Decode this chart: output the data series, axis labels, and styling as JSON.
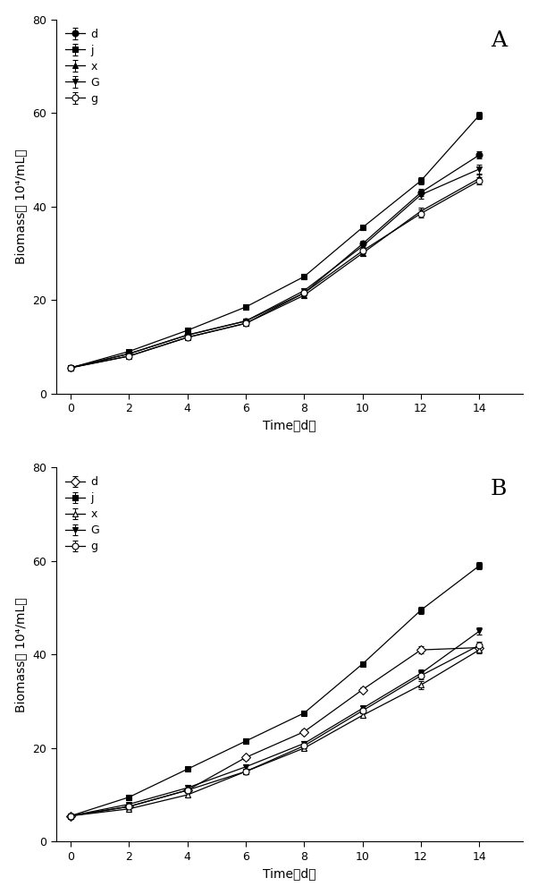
{
  "x": [
    0,
    2,
    4,
    6,
    8,
    10,
    12,
    14
  ],
  "panelA": {
    "label": "A",
    "series": {
      "d": {
        "y": [
          5.5,
          8.5,
          12.5,
          15.5,
          21.5,
          32.0,
          43.0,
          51.0
        ],
        "yerr": [
          0.3,
          0.3,
          0.4,
          0.5,
          0.5,
          0.6,
          0.8,
          0.8
        ],
        "marker": "o",
        "mfc": "black",
        "mec": "black",
        "markersize": 5,
        "legend_label": "d"
      },
      "j": {
        "y": [
          5.5,
          9.0,
          13.5,
          18.5,
          25.0,
          35.5,
          45.5,
          59.5
        ],
        "yerr": [
          0.3,
          0.3,
          0.4,
          0.5,
          0.5,
          0.5,
          0.8,
          0.8
        ],
        "marker": "s",
        "mfc": "black",
        "mec": "black",
        "markersize": 5,
        "legend_label": "j"
      },
      "x": {
        "y": [
          5.5,
          8.0,
          12.0,
          15.0,
          21.0,
          30.0,
          39.0,
          46.0
        ],
        "yerr": [
          0.3,
          0.3,
          0.4,
          0.5,
          0.5,
          0.5,
          0.8,
          0.8
        ],
        "marker": "^",
        "mfc": "black",
        "mec": "black",
        "markersize": 5,
        "legend_label": "x"
      },
      "G": {
        "y": [
          5.5,
          8.5,
          12.5,
          15.5,
          22.0,
          31.5,
          42.5,
          48.0
        ],
        "yerr": [
          0.3,
          0.3,
          0.4,
          0.5,
          0.5,
          0.6,
          0.8,
          1.0
        ],
        "marker": "v",
        "mfc": "black",
        "mec": "black",
        "markersize": 5,
        "legend_label": "G"
      },
      "g": {
        "y": [
          5.5,
          8.0,
          12.0,
          15.0,
          21.5,
          30.5,
          38.5,
          45.5
        ],
        "yerr": [
          0.3,
          0.3,
          0.4,
          0.5,
          0.5,
          0.5,
          0.8,
          0.8
        ],
        "marker": "o",
        "mfc": "white",
        "mec": "black",
        "markersize": 5,
        "legend_label": "g"
      }
    },
    "series_order": [
      "d",
      "j",
      "x",
      "G",
      "g"
    ]
  },
  "panelB": {
    "label": "B",
    "series": {
      "d": {
        "y": [
          5.5,
          7.5,
          11.0,
          18.0,
          23.5,
          32.5,
          41.0,
          41.5
        ],
        "yerr": [
          0.3,
          0.3,
          0.4,
          0.5,
          0.5,
          0.5,
          0.8,
          0.8
        ],
        "marker": "D",
        "mfc": "white",
        "mec": "black",
        "markersize": 5,
        "legend_label": "d"
      },
      "j": {
        "y": [
          5.5,
          9.5,
          15.5,
          21.5,
          27.5,
          38.0,
          49.5,
          59.0
        ],
        "yerr": [
          0.3,
          0.3,
          0.4,
          0.5,
          0.5,
          0.5,
          0.8,
          0.8
        ],
        "marker": "s",
        "mfc": "black",
        "mec": "black",
        "markersize": 5,
        "legend_label": "j"
      },
      "x": {
        "y": [
          5.5,
          7.0,
          10.0,
          15.0,
          20.0,
          27.0,
          33.5,
          41.0
        ],
        "yerr": [
          0.3,
          0.3,
          0.4,
          0.5,
          0.5,
          0.5,
          0.8,
          0.8
        ],
        "marker": "^",
        "mfc": "white",
        "mec": "black",
        "markersize": 5,
        "legend_label": "x"
      },
      "G": {
        "y": [
          5.5,
          8.0,
          11.5,
          16.0,
          21.0,
          28.5,
          36.0,
          45.0
        ],
        "yerr": [
          0.3,
          0.3,
          0.4,
          0.5,
          0.5,
          0.5,
          0.8,
          0.8
        ],
        "marker": "v",
        "mfc": "black",
        "mec": "black",
        "markersize": 5,
        "legend_label": "G"
      },
      "g": {
        "y": [
          5.5,
          7.5,
          11.0,
          15.0,
          20.5,
          28.0,
          35.5,
          42.0
        ],
        "yerr": [
          0.3,
          0.3,
          0.4,
          0.5,
          0.5,
          0.5,
          0.8,
          0.8
        ],
        "marker": "o",
        "mfc": "white",
        "mec": "black",
        "markersize": 5,
        "legend_label": "g"
      }
    },
    "series_order": [
      "d",
      "j",
      "x",
      "G",
      "g"
    ]
  },
  "xlabel": "Time（d）",
  "ylabel": "Biomass（ 10⁴/mL）",
  "ylim": [
    0,
    80
  ],
  "yticks": [
    0,
    20,
    40,
    60,
    80
  ],
  "xlim": [
    -0.5,
    15.5
  ],
  "xticks": [
    0,
    2,
    4,
    6,
    8,
    10,
    12,
    14
  ],
  "line_color": "black",
  "background_color": "#ffffff",
  "legend_fontsize": 9,
  "axis_fontsize": 10,
  "tick_fontsize": 9,
  "panel_label_fontsize": 18
}
